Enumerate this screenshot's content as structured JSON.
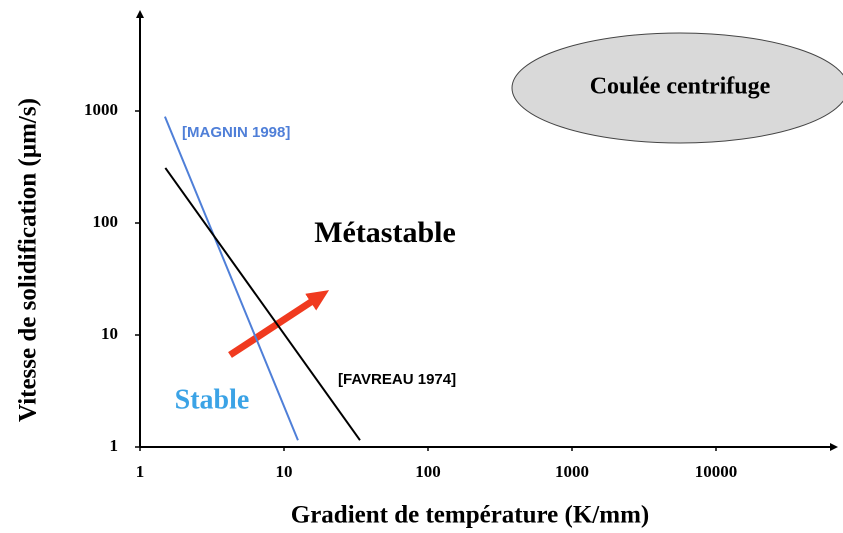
{
  "chart_data": {
    "type": "line",
    "xlabel": "Gradient de température (K/mm)",
    "ylabel": "Vitesse de solidification (µm/s)",
    "log_x": true,
    "log_y": true,
    "xlim": [
      1,
      60000
    ],
    "ylim": [
      1,
      7000
    ],
    "xticks": [
      1,
      10,
      100,
      1000,
      10000
    ],
    "yticks": [
      1,
      10,
      100,
      1000
    ],
    "series": [
      {
        "name": "[MAGNIN 1998]",
        "color": "#4f7fd8",
        "x": [
          1.49,
          12.5
        ],
        "values": [
          890,
          1.15
        ]
      },
      {
        "name": "[FAVREAU 1974]",
        "color": "#000000",
        "x": [
          1.5,
          33.7
        ],
        "values": [
          310,
          1.15
        ]
      }
    ],
    "annotations": [
      "Métastable",
      "Stable",
      "Coulée centrifuge"
    ]
  }
}
